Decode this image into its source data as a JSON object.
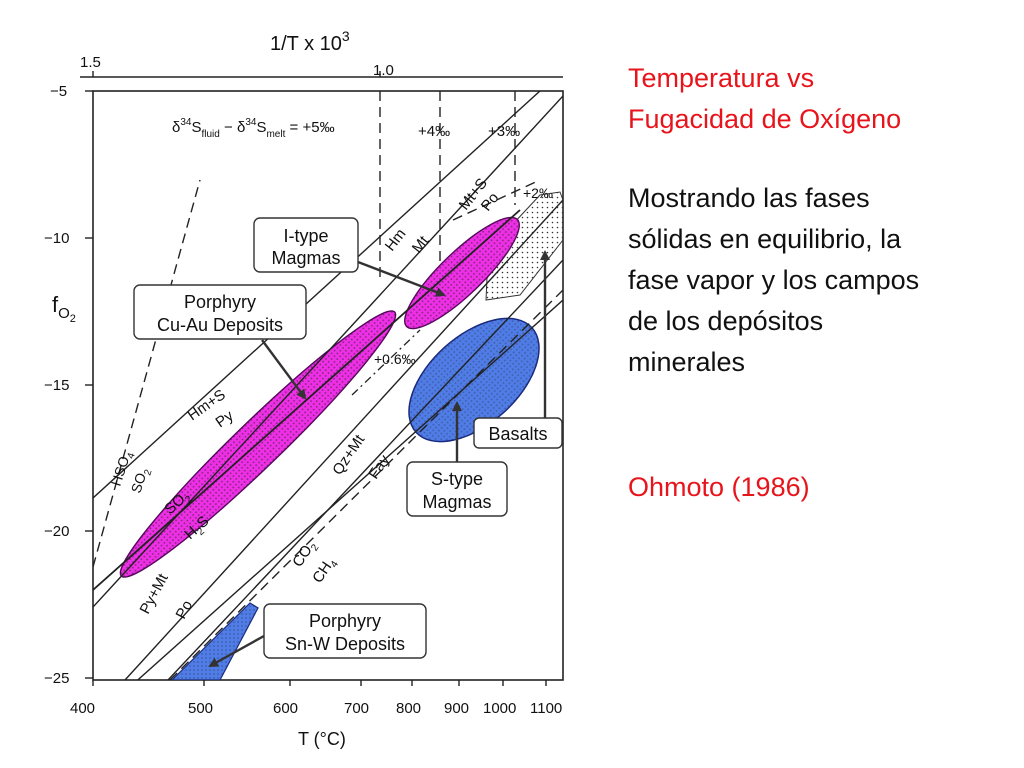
{
  "colors": {
    "red_text": "#e8141b",
    "black_text": "#111111",
    "magenta_field": "#ee2fe6",
    "blue_field": "#4f7ce6",
    "stipple_field": "#e9e9e9"
  },
  "side_panel": {
    "title_lines": [
      "Temperatura vs",
      "Fugacidad de Oxígeno"
    ],
    "description_lines": [
      "Mostrando las fases",
      "sólidas en equilibrio, la",
      "fase vapor y los campos",
      "de los depósitos",
      "minerales"
    ],
    "reference": "Ohmoto (1986)"
  },
  "diagram": {
    "top_axis": {
      "title": "1/T x 10",
      "title_exponent": "3",
      "ticks": [
        "1.5",
        "1.0"
      ]
    },
    "y_axis": {
      "title_base": "f",
      "title_sub": "O",
      "title_sub2": "2",
      "ticks": [
        "−5",
        "−10",
        "−15",
        "−20",
        "−25"
      ]
    },
    "x_axis": {
      "title": "T (°C)",
      "ticks": [
        "400",
        "500",
        "600",
        "700",
        "800",
        "900",
        "1000",
        "1100"
      ]
    },
    "isotope_header": {
      "delta": "δ",
      "mass": "34",
      "s": "S",
      "fluid": "fluid",
      "minus": " − ",
      "melt": "melt",
      "equals": " = +5‰"
    },
    "isotope_labels": [
      "+4‰",
      "+3‰",
      "+2‰",
      "+0.6‰"
    ],
    "buffer_labels": {
      "hm": "Hm",
      "mt": "Mt",
      "mts": "Mt+S",
      "po_top": "Po",
      "hms": "Hm+S",
      "py_upper": "Py",
      "hso4": "HSO",
      "hso4_sub": "4",
      "so2": "SO",
      "so2_sub": "2",
      "so2b": "SO",
      "so2b_sub": "2",
      "h2s": "H",
      "h2s_sub": "2",
      "h2s_end": "S",
      "qzmt": "Qz+Mt",
      "fay": "Fay",
      "co2": "CO",
      "co2_sub": "2",
      "ch4": "CH",
      "ch4_sub": "4",
      "pymt": "Py+Mt",
      "po_low": "Po"
    },
    "boxes": {
      "itype": [
        "I-type",
        "Magmas"
      ],
      "porphyry_cuau": [
        "Porphyry",
        "Cu-Au Deposits"
      ],
      "basalts": [
        "Basalts"
      ],
      "stype": [
        "S-type",
        "Magmas"
      ],
      "porphyry_snw": [
        "Porphyry",
        "Sn-W Deposits"
      ]
    }
  }
}
